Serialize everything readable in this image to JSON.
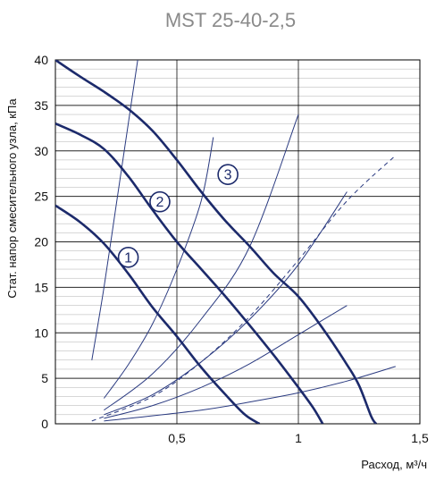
{
  "chart_data": {
    "type": "line",
    "title": "MST 25-40-2,5",
    "xlabel": "Расход, м³/ч",
    "ylabel": "Стат. напор  смесительного узла, кПа",
    "xlim": [
      0,
      1.5
    ],
    "ylim": [
      0,
      40
    ],
    "x_ticks": [
      "0,5",
      "1",
      "1,5"
    ],
    "y_ticks": [
      "0",
      "5",
      "10",
      "15",
      "20",
      "25",
      "30",
      "35",
      "40"
    ],
    "grid": true,
    "colors": {
      "pump": "#1c2a6b",
      "system": "#2a3a80",
      "grid": "#000000"
    },
    "pump_curves": [
      {
        "name": "1",
        "points": [
          [
            0,
            24
          ],
          [
            0.1,
            22.2
          ],
          [
            0.2,
            19.8
          ],
          [
            0.3,
            16.5
          ],
          [
            0.4,
            12.8
          ],
          [
            0.5,
            9.6
          ],
          [
            0.6,
            6.2
          ],
          [
            0.7,
            3.2
          ],
          [
            0.78,
            1.0
          ],
          [
            0.84,
            0
          ]
        ]
      },
      {
        "name": "2",
        "points": [
          [
            0,
            33
          ],
          [
            0.1,
            31.8
          ],
          [
            0.2,
            30.2
          ],
          [
            0.3,
            27.2
          ],
          [
            0.4,
            23.5
          ],
          [
            0.5,
            20.0
          ],
          [
            0.6,
            17.0
          ],
          [
            0.7,
            14.0
          ],
          [
            0.8,
            10.8
          ],
          [
            0.9,
            7.5
          ],
          [
            1.0,
            4.0
          ],
          [
            1.06,
            1.8
          ],
          [
            1.1,
            0
          ]
        ]
      },
      {
        "name": "3",
        "points": [
          [
            0,
            40
          ],
          [
            0.1,
            38.2
          ],
          [
            0.2,
            36.5
          ],
          [
            0.3,
            34.6
          ],
          [
            0.4,
            32.2
          ],
          [
            0.5,
            29.0
          ],
          [
            0.6,
            25.5
          ],
          [
            0.7,
            22.3
          ],
          [
            0.8,
            19.5
          ],
          [
            0.9,
            16.5
          ],
          [
            1.0,
            14.0
          ],
          [
            1.1,
            10.5
          ],
          [
            1.2,
            6.5
          ],
          [
            1.25,
            4.2
          ],
          [
            1.3,
            0.8
          ],
          [
            1.32,
            0
          ]
        ]
      }
    ],
    "system_curves": [
      {
        "style": "solid",
        "points": [
          [
            0.15,
            7
          ],
          [
            0.2,
            15
          ],
          [
            0.25,
            24
          ],
          [
            0.3,
            33
          ],
          [
            0.35,
            42
          ]
        ]
      },
      {
        "style": "solid",
        "points": [
          [
            0.2,
            2.8
          ],
          [
            0.3,
            6.5
          ],
          [
            0.4,
            11
          ],
          [
            0.5,
            17
          ],
          [
            0.6,
            24.5
          ],
          [
            0.65,
            31.5
          ]
        ]
      },
      {
        "style": "solid",
        "points": [
          [
            0.2,
            1.5
          ],
          [
            0.4,
            5.5
          ],
          [
            0.6,
            11.5
          ],
          [
            0.8,
            19.5
          ],
          [
            1.0,
            34
          ]
        ]
      },
      {
        "style": "solid",
        "points": [
          [
            0.2,
            1.0
          ],
          [
            0.4,
            3.2
          ],
          [
            0.6,
            6.8
          ],
          [
            0.8,
            11.5
          ],
          [
            1.0,
            17.5
          ],
          [
            1.2,
            25.5
          ]
        ]
      },
      {
        "style": "dashed",
        "points": [
          [
            0.15,
            0.3
          ],
          [
            0.4,
            3.0
          ],
          [
            0.6,
            6.8
          ],
          [
            0.8,
            11.8
          ],
          [
            1.0,
            18.0
          ],
          [
            1.2,
            24.5
          ],
          [
            1.4,
            29.5
          ]
        ]
      },
      {
        "style": "solid",
        "points": [
          [
            0.2,
            0.6
          ],
          [
            0.4,
            2.0
          ],
          [
            0.6,
            4.0
          ],
          [
            0.8,
            6.6
          ],
          [
            1.0,
            9.8
          ],
          [
            1.2,
            13.0
          ]
        ]
      },
      {
        "style": "solid",
        "points": [
          [
            0.2,
            0.3
          ],
          [
            0.6,
            1.5
          ],
          [
            0.8,
            2.4
          ],
          [
            1.0,
            3.4
          ],
          [
            1.2,
            4.7
          ],
          [
            1.4,
            6.3
          ]
        ]
      }
    ],
    "annotations": [
      {
        "text": "1",
        "x": 0.3,
        "y": 18.3
      },
      {
        "text": "2",
        "x": 0.43,
        "y": 24.4
      },
      {
        "text": "3",
        "x": 0.71,
        "y": 27.4
      }
    ]
  }
}
